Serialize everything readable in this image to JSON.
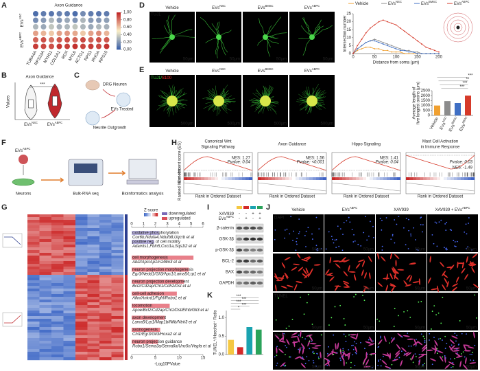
{
  "panel_labels": {
    "a": "A",
    "b": "B",
    "c": "C",
    "d": "D",
    "e": "E",
    "f": "F",
    "g": "G",
    "h": "H",
    "i": "I",
    "j": "J",
    "k": "K"
  },
  "a": {
    "title": "Axon Guidance",
    "groups": [
      {
        "base": "EVs",
        "sup": "NSC"
      },
      {
        "base": "EVs",
        "sup": "ABPC"
      }
    ],
    "genes": [
      "TUBA4A",
      "RPS23A",
      "MYH11",
      "COL5A1",
      "RDX",
      "MYL6",
      "ACTG1",
      "RPS3",
      "RHOA",
      "RPS15"
    ],
    "values": [
      [
        0.05,
        0.1,
        0.08,
        0.12,
        0.1,
        0.05,
        0.15,
        0.1,
        0.08,
        0.1
      ],
      [
        0.15,
        0.2,
        0.3,
        0.2,
        0.25,
        0.18,
        0.3,
        0.2,
        0.2,
        0.22
      ],
      [
        0.3,
        0.25,
        0.35,
        0.28,
        0.3,
        0.35,
        0.3,
        0.25,
        0.3,
        0.28
      ],
      [
        0.7,
        0.65,
        0.6,
        0.7,
        0.72,
        0.68,
        0.6,
        0.7,
        0.75,
        0.65
      ],
      [
        0.85,
        0.9,
        0.82,
        0.88,
        0.9,
        0.85,
        0.92,
        0.86,
        0.9,
        0.88
      ],
      [
        0.95,
        0.92,
        0.9,
        0.96,
        0.94,
        0.98,
        0.93,
        0.95,
        0.92,
        0.97
      ]
    ],
    "colorbar": {
      "lim": [
        0,
        1
      ],
      "ticks": [
        {
          "value": 0,
          "label": "0.00"
        },
        {
          "value": 0.2,
          "label": "0.20"
        },
        {
          "value": 0.4,
          "label": "0.40"
        },
        {
          "value": 0.6,
          "label": "0.60"
        },
        {
          "value": 0.8,
          "label": "0.80"
        },
        {
          "value": 1,
          "label": "1.00"
        }
      ]
    }
  },
  "b": {
    "title": "Axon Guidance",
    "ylabel": "Values",
    "categories": [
      {
        "base": "EVs",
        "sup": "NSC"
      },
      {
        "base": "EVs",
        "sup": "ABPC"
      }
    ],
    "sig": "***"
  },
  "c": {
    "steps": [
      "DRG Neuron",
      "EVs Treated",
      "Neurite Outgrowth"
    ]
  },
  "d": {
    "conditions": [
      {
        "base": "Vehicle"
      },
      {
        "base": "EVs",
        "sup": "NSC"
      },
      {
        "base": "EVs",
        "sup": "BMSC"
      },
      {
        "base": "EVs",
        "sup": "ABPC"
      }
    ],
    "stain": "TUJ1",
    "scale": "50μm",
    "chart": {
      "type": "line",
      "xlabel": "Distance from soma (μm)",
      "ylabel": "Intersection number",
      "x": [
        0,
        10,
        20,
        30,
        40,
        50,
        60,
        70,
        80,
        90,
        100,
        110,
        120,
        130,
        140,
        150,
        160,
        170,
        180,
        190,
        200
      ],
      "series": [
        {
          "name": {
            "base": "Vehicle"
          },
          "color": "#f0a030",
          "values": [
            0,
            2,
            3,
            4,
            4,
            3,
            3,
            2,
            2,
            1,
            1,
            1,
            0,
            0,
            0,
            0,
            0,
            0,
            0,
            0,
            0
          ]
        },
        {
          "name": {
            "base": "EVs",
            "sup": "NSC"
          },
          "color": "#8c8c8c",
          "values": [
            0,
            3,
            5,
            7,
            8,
            9,
            8,
            7,
            6,
            5,
            4,
            3,
            2,
            2,
            1,
            1,
            0,
            0,
            0,
            0,
            0
          ]
        },
        {
          "name": {
            "base": "EVs",
            "sup": "BMSC"
          },
          "color": "#3f6fc4",
          "values": [
            0,
            3,
            5,
            7,
            8,
            8,
            7,
            6,
            5,
            4,
            3,
            2,
            2,
            1,
            1,
            0,
            0,
            0,
            0,
            0,
            0
          ]
        },
        {
          "name": {
            "base": "EVs",
            "sup": "ABPC"
          },
          "color": "#d63a2a",
          "values": [
            0,
            5,
            9,
            13,
            16,
            18,
            20,
            21,
            20,
            19,
            18,
            16,
            14,
            12,
            10,
            8,
            6,
            4,
            3,
            2,
            1
          ]
        }
      ],
      "xlim": [
        0,
        200
      ],
      "xticks": [
        0,
        50,
        100,
        150,
        200
      ],
      "ylim": [
        0,
        25
      ],
      "yticks": [
        0,
        5,
        10,
        15,
        20,
        25
      ]
    }
  },
  "e": {
    "conditions": [
      {
        "base": "Vehicle"
      },
      {
        "base": "EVs",
        "sup": "NSC"
      },
      {
        "base": "EVs",
        "sup": "BMSC"
      },
      {
        "base": "EVs",
        "sup": "ABPC"
      }
    ],
    "stain": [
      "TUJ1/",
      "S100"
    ],
    "scale": "500μm",
    "chart": {
      "type": "bar",
      "ylabel": [
        "Average length of",
        "five longest axons (μm)"
      ],
      "categories": [
        {
          "base": "Vehicle"
        },
        {
          "base": "EVs",
          "sup": "NSC"
        },
        {
          "base": "EVs",
          "sup": "BMSC"
        },
        {
          "base": "EVs",
          "sup": "ABPC"
        }
      ],
      "values": [
        1000,
        1450,
        1250,
        2000
      ],
      "colors": [
        "#f0a030",
        "#8c8c8c",
        "#3f6fc4",
        "#d63a2a"
      ],
      "ylim": [
        0,
        2500
      ],
      "yticks": [
        0,
        500,
        1000,
        1500,
        2000,
        2500
      ],
      "sig": [
        "***",
        "**",
        "***",
        "***"
      ]
    }
  },
  "f": {
    "source": {
      "base": "EVs",
      "sup": "ABPC"
    },
    "steps": [
      "Neurons",
      "Bulk-RNA seq",
      "Bioinformatics analysis"
    ]
  },
  "h": {
    "ylabel": "Enrichment score (ES)",
    "ylabel2": "Ranked list metric",
    "xlabel": "Rank in Ordered Dataset",
    "panels": [
      {
        "title": [
          "Canonical Wnt",
          "Signaling Pathway"
        ],
        "nes": "NES: 1.27",
        "p": "Pvalue: 0.04"
      },
      {
        "title": [
          "Axon Guidance"
        ],
        "nes": "NES: 1.56",
        "p": "Pvalue: <0.001"
      },
      {
        "title": [
          "Hippo Signaling"
        ],
        "nes": "NES: 1.41",
        "p": "Pvalue: 0.04"
      },
      {
        "title": [
          "Mast Cell Activation",
          "in Immune Response"
        ],
        "nes": "NES: -1.49",
        "p": "Pvalue: 0.03"
      }
    ]
  },
  "g": {
    "legend": {
      "title": "Z-score",
      "down": "downregulated",
      "up": "upregulated"
    },
    "xlabel": "-Log10PValue",
    "top": {
      "lim": [
        0,
        6
      ],
      "ticks": [
        0,
        1,
        2,
        3,
        4,
        5,
        6
      ],
      "terms": [
        {
          "name": "oxidative phosphorylation",
          "genes": "Cox6b,Ndufa4,Ndufb8,Uqcrb et al",
          "value": 2.3
        },
        {
          "name": "positive reg. of cell motility",
          "genes": "Adamts1,Fbln5,Cxcl1a,Sqs1l2 et al",
          "value": 1.9
        }
      ]
    },
    "bottom": {
      "lim": [
        0,
        15
      ],
      "ticks": [
        0,
        5,
        10,
        15
      ],
      "terms": [
        {
          "name": "cell morphogenesis",
          "genes": "Abi2/Apc/Ap1m1/Bin3 et al",
          "value": 13
        },
        {
          "name": "neuron projection morphogenesis",
          "genes": "Egr3/Nedd1/Gli3/Apc1/Lama5/Lrp1 et al",
          "value": 12
        },
        {
          "name": "neuron projection development",
          "genes": "Bcl2/Cd2ap/Chl1/Cdh2/Dst et al",
          "value": 11
        },
        {
          "name": "cell-cell adhesion",
          "genes": "Alkn/Ankrd1/Fgfrl/Robo1 et al",
          "value": 9.5
        },
        {
          "name": "locomotion",
          "genes": "Apoe/Bcl2/Cd2ap/Chl1/Dst/Efnb/Gli3 et al",
          "value": 8
        },
        {
          "name": "axon development",
          "genes": "Lama5/Lrp1/Map1b/Nfib/Ntrk3 et al",
          "value": 7
        },
        {
          "name": "axonogenesis",
          "genes": "Chl1/Egr3/Gli3/Hoxa2 et al",
          "value": 6
        },
        {
          "name": "neuron projection guidance",
          "genes": "Robo1/Sema3a/Sema6a/Unc5c/Vegfa et al",
          "value": 5.5
        }
      ]
    }
  },
  "i": {
    "lane_colors": [
      "#f5c842",
      "#d42a2a",
      "#1aa3b0",
      "#2aa35a"
    ],
    "rows": [
      {
        "label": {
          "base": "XAV939"
        },
        "signs": [
          "-",
          "-",
          "+",
          "+"
        ]
      },
      {
        "label": {
          "base": "EVs",
          "sup": "ABPC"
        },
        "signs": [
          "-",
          "+",
          "-",
          "+"
        ]
      }
    ],
    "proteins": [
      "β-catenin",
      "GSK-3β",
      "p-GSK-3β",
      "BCL-2",
      "BAX",
      "GAPDH"
    ]
  },
  "j": {
    "conditions": [
      {
        "base": "Vehicle"
      },
      {
        "base": "EVs",
        "sup": "ABPC"
      },
      {
        "base": "XAV939"
      },
      {
        "base": "XAV939 + EVs",
        "sup": "ABPC"
      }
    ],
    "stains": [
      "DAPI",
      null,
      "TUNEL",
      "Merge"
    ],
    "scale": "50μm"
  },
  "k": {
    "type": "bar",
    "ylabel": "TUNEL⁺/Hoechst⁺ Ratio",
    "values": [
      0.4,
      0.2,
      0.75,
      0.68
    ],
    "colors": [
      "#f5c842",
      "#d42a2a",
      "#1aa3b0",
      "#2aa35a"
    ],
    "ylim": [
      0,
      1.2
    ],
    "yticks": [
      {
        "value": 0,
        "label": "0.0"
      },
      {
        "value": 0.5,
        "label": "0.5"
      },
      {
        "value": 1,
        "label": "1.0"
      }
    ],
    "sig": [
      "*",
      "***",
      "***",
      "***",
      "***"
    ]
  }
}
